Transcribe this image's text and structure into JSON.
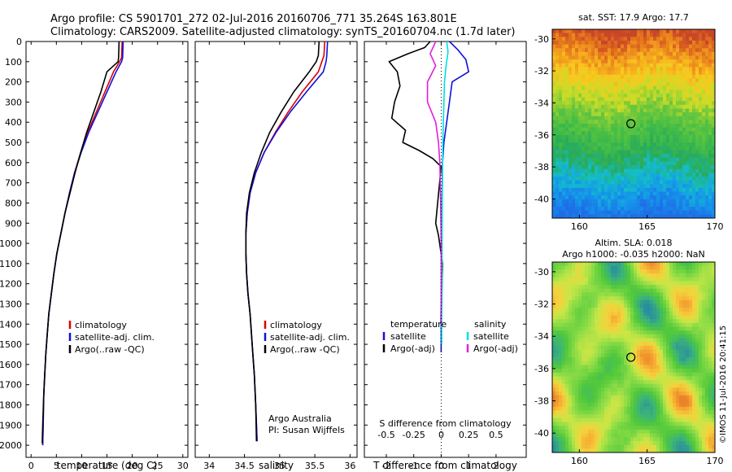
{
  "header": {
    "line1": "Argo profile: CS 5901701_272 02-Jul-2016 20160706_771 35.264S 163.801E",
    "line2": "Climatology: CARS2009. Satellite-adjusted climatology: synTS_20160704.nc (1.7d later)"
  },
  "credit": "©IMOS 11-Jul-2016 20:41:15",
  "colors": {
    "climatology": "#dd0000",
    "satellite": "#1010dd",
    "argo": "#000000",
    "sal_satellite": "#00e0e0",
    "sal_argo": "#e020e0"
  },
  "chart_data": [
    {
      "type": "line",
      "name": "temperature-profile",
      "xlabel": "temperature (deg C)",
      "xlim": [
        -1,
        31
      ],
      "xticks": [
        0,
        5,
        10,
        15,
        20,
        25,
        30
      ],
      "ylim": [
        0,
        2060
      ],
      "yticks": [
        0,
        100,
        200,
        300,
        400,
        500,
        600,
        700,
        800,
        900,
        1000,
        1100,
        1200,
        1300,
        1400,
        1500,
        1600,
        1700,
        1800,
        1900,
        2000
      ],
      "legend": [
        "climatology",
        "satellite-adj. clim.",
        "Argo(..raw -QC)"
      ],
      "series": [
        {
          "name": "climatology",
          "color": "#dd0000",
          "x": [
            18.0,
            17.9,
            17.5,
            16.3,
            14.6,
            12.9,
            11.2,
            9.8,
            8.6,
            7.6,
            6.7,
            5.9,
            5.1,
            4.5,
            4.0,
            3.5,
            3.2,
            2.9,
            2.7,
            2.5,
            2.4,
            2.3
          ],
          "y": [
            0,
            80,
            100,
            150,
            250,
            350,
            450,
            550,
            650,
            750,
            850,
            950,
            1050,
            1150,
            1250,
            1350,
            1450,
            1550,
            1650,
            1750,
            1900,
            2000
          ]
        },
        {
          "name": "satellite-adj. clim.",
          "color": "#1010dd",
          "x": [
            18.2,
            18.1,
            17.9,
            16.8,
            15.0,
            13.2,
            11.4,
            9.9,
            8.6,
            7.6,
            6.7,
            5.9,
            5.1,
            4.5,
            4.0,
            3.5,
            3.2,
            2.9,
            2.7,
            2.5,
            2.4,
            2.3
          ],
          "y": [
            0,
            80,
            100,
            150,
            250,
            350,
            450,
            550,
            650,
            750,
            850,
            950,
            1050,
            1150,
            1250,
            1350,
            1450,
            1550,
            1650,
            1750,
            1900,
            2000
          ]
        },
        {
          "name": "Argo(..raw -QC)",
          "color": "#000000",
          "x": [
            17.4,
            17.3,
            17.2,
            15.0,
            13.8,
            12.4,
            11.0,
            9.8,
            8.7,
            7.7,
            6.7,
            5.9,
            5.1,
            4.5,
            4.0,
            3.5,
            3.2,
            2.9,
            2.7,
            2.5,
            2.3,
            2.2
          ],
          "y": [
            0,
            80,
            100,
            150,
            250,
            350,
            450,
            550,
            650,
            750,
            850,
            950,
            1050,
            1150,
            1250,
            1350,
            1450,
            1550,
            1650,
            1750,
            1900,
            1990
          ]
        }
      ]
    },
    {
      "type": "line",
      "name": "salinity-profile",
      "xlabel": "salinity",
      "xlim": [
        33.8,
        36.1
      ],
      "xticks": [
        34,
        34.5,
        35,
        35.5,
        36
      ],
      "ylim": [
        0,
        2060
      ],
      "legend": [
        "climatology",
        "satellite-adj. clim.",
        "Argo(..raw -QC)"
      ],
      "annotation": [
        "Argo Australia",
        "PI: Susan Wijffels"
      ],
      "series": [
        {
          "name": "climatology",
          "color": "#dd0000",
          "x": [
            35.64,
            35.63,
            35.6,
            35.55,
            35.32,
            35.12,
            34.94,
            34.78,
            34.66,
            34.58,
            34.54,
            34.52,
            34.52,
            34.53,
            34.55,
            34.58,
            34.6,
            34.62,
            34.64,
            34.66,
            34.68
          ],
          "y": [
            0,
            70,
            100,
            150,
            250,
            350,
            450,
            550,
            650,
            750,
            850,
            950,
            1050,
            1150,
            1250,
            1350,
            1450,
            1550,
            1650,
            1800,
            1980
          ]
        },
        {
          "name": "satellite-adj. clim.",
          "color": "#1010dd",
          "x": [
            35.68,
            35.67,
            35.66,
            35.62,
            35.38,
            35.15,
            34.95,
            34.78,
            34.66,
            34.58,
            34.54,
            34.52,
            34.52,
            34.53,
            34.55,
            34.58,
            34.6,
            34.62,
            34.64,
            34.66,
            34.68
          ],
          "y": [
            0,
            70,
            100,
            150,
            250,
            350,
            450,
            550,
            650,
            750,
            850,
            950,
            1050,
            1150,
            1250,
            1350,
            1450,
            1550,
            1650,
            1800,
            1980
          ]
        },
        {
          "name": "Argo(..raw -QC)",
          "color": "#000000",
          "x": [
            35.56,
            35.55,
            35.52,
            35.42,
            35.2,
            35.02,
            34.86,
            34.74,
            34.64,
            34.57,
            34.53,
            34.52,
            34.52,
            34.53,
            34.55,
            34.58,
            34.6,
            34.62,
            34.64,
            34.66,
            34.67
          ],
          "y": [
            0,
            70,
            100,
            150,
            250,
            350,
            450,
            550,
            650,
            750,
            850,
            950,
            1050,
            1150,
            1250,
            1350,
            1450,
            1550,
            1650,
            1800,
            1980
          ]
        }
      ]
    },
    {
      "type": "line",
      "name": "difference-profile",
      "xlabel": "T difference from climatology",
      "xlabel_top": "S difference from climatology",
      "xlim": [
        -2.8,
        3.1
      ],
      "xticks": [
        -2,
        -1,
        0,
        1,
        2
      ],
      "xticks_top": [
        "-0.5",
        "-0.25",
        "0",
        "0.25",
        "0.5"
      ],
      "ylim": [
        0,
        2060
      ],
      "legend_temperature": [
        "temperature",
        "satellite",
        "Argo(-adj)"
      ],
      "legend_salinity": [
        "salinity",
        "satellite",
        "Argo(-adj)"
      ],
      "series": [
        {
          "name": "temperature satellite",
          "color": "#1010dd",
          "x": [
            0.3,
            0.6,
            0.9,
            1.0,
            0.4,
            0.3,
            0.2,
            0.1,
            0.05,
            0.03,
            0.02,
            0.01,
            0.0,
            0.0,
            0.0
          ],
          "y": [
            0,
            40,
            90,
            150,
            200,
            300,
            400,
            500,
            600,
            800,
            1000,
            1200,
            1400,
            1500,
            1540
          ]
        },
        {
          "name": "temperature Argo(-adj)",
          "color": "#000000",
          "x": [
            -0.4,
            -0.6,
            -1.2,
            -1.9,
            -1.6,
            -1.5,
            -1.7,
            -1.8,
            -1.3,
            -1.4,
            -0.8,
            -0.3,
            0.0,
            -0.2,
            -0.1,
            0.05,
            0.0
          ],
          "y": [
            0,
            30,
            60,
            100,
            150,
            220,
            300,
            380,
            440,
            500,
            540,
            580,
            620,
            900,
            960,
            1100,
            1400
          ]
        },
        {
          "name": "salinity satellite",
          "color": "#00e0e0",
          "x": [
            0.2,
            0.25,
            0.18,
            0.12,
            0.1,
            0.08,
            0.06,
            0.05,
            0.04,
            0.03,
            0.03,
            0.02,
            0.02
          ],
          "y": [
            0,
            50,
            120,
            200,
            300,
            400,
            500,
            600,
            800,
            1000,
            1200,
            1400,
            1500
          ]
        },
        {
          "name": "salinity Argo(-adj)",
          "color": "#e020e0",
          "x": [
            -0.2,
            -0.4,
            -0.2,
            -0.5,
            -0.5,
            -0.2,
            -0.1,
            -0.05,
            -0.02,
            0.0,
            0.0,
            0.0,
            -0.02
          ],
          "y": [
            0,
            60,
            120,
            200,
            300,
            400,
            500,
            600,
            800,
            1000,
            1200,
            1300,
            1400
          ]
        }
      ]
    },
    {
      "type": "heatmap",
      "name": "sst-map",
      "title": "sat. SST: 17.9 Argo: 17.7",
      "xlim": [
        158,
        170
      ],
      "xticks": [
        160,
        165,
        170
      ],
      "ylim": [
        -41.2,
        -29.4
      ],
      "yticks": [
        -30,
        -32,
        -34,
        -36,
        -38,
        -40
      ],
      "marker": {
        "lon": 163.8,
        "lat": -35.3
      }
    },
    {
      "type": "heatmap",
      "name": "sla-map",
      "title": "Altim. SLA: 0.018",
      "subtitle": "Argo h1000: -0.035 h2000: NaN",
      "xlim": [
        158,
        170
      ],
      "xticks": [
        160,
        165,
        170
      ],
      "ylim": [
        -41.2,
        -29.4
      ],
      "yticks": [
        -30,
        -32,
        -34,
        -36,
        -38,
        -40
      ],
      "marker": {
        "lon": 163.8,
        "lat": -35.3
      }
    }
  ]
}
